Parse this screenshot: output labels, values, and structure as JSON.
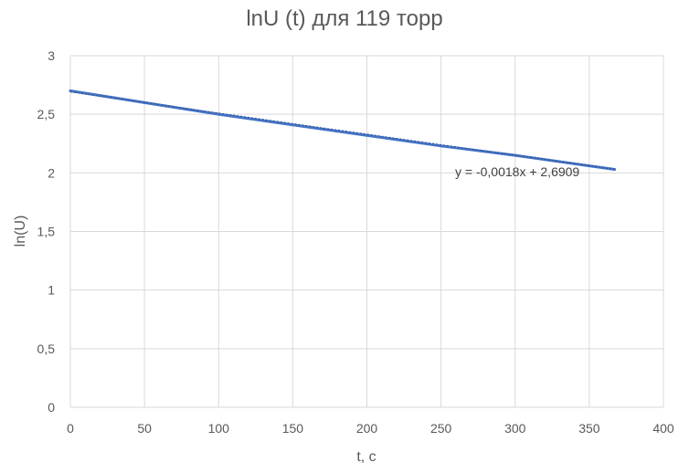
{
  "chart_data": {
    "type": "line",
    "title": "lnU (t) для 119 торр",
    "xlabel": "t, с",
    "ylabel": "ln(U)",
    "xlim": [
      0,
      400
    ],
    "ylim": [
      0,
      3
    ],
    "x_ticks": [
      0,
      50,
      100,
      150,
      200,
      250,
      300,
      350,
      400
    ],
    "y_ticks": [
      0,
      0.5,
      1,
      1.5,
      2,
      2.5,
      3
    ],
    "x_tick_labels": [
      "0",
      "50",
      "100",
      "150",
      "200",
      "250",
      "300",
      "350",
      "400"
    ],
    "y_tick_labels": [
      "0",
      "0,5",
      "1",
      "1,5",
      "2",
      "2,5",
      "3"
    ],
    "grid": true,
    "series": [
      {
        "color": "#4472c4",
        "x": [
          0,
          50,
          100,
          150,
          200,
          250,
          300,
          350,
          367
        ],
        "y": [
          2.7,
          2.6,
          2.5,
          2.41,
          2.32,
          2.23,
          2.15,
          2.06,
          2.03
        ]
      }
    ],
    "trendline": {
      "equation": "y = -0,0018x + 2,6909",
      "slope": -0.0018,
      "intercept": 2.6909
    }
  }
}
